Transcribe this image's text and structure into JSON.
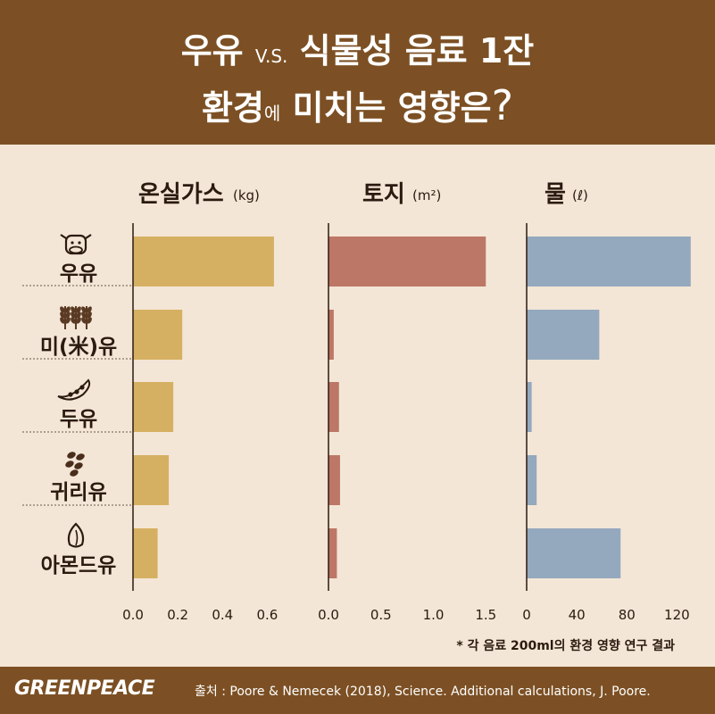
{
  "header": {
    "title_line1_a": "우유",
    "title_line1_vs": "V.S.",
    "title_line1_b": "식물성 음료 1잔",
    "title_line2_a": "환경",
    "title_line2_small": "에",
    "title_line2_b": "미치는 영향은",
    "title_line2_q": "?"
  },
  "footnote": "* 각 음료 200ml의 환경 영향 연구 결과",
  "footer": {
    "logo": "GREENPEACE",
    "source": "출처 : Poore & Nemecek (2018), Science. Additional calculations, J. Poore."
  },
  "colors": {
    "header_bg": "#7c5024",
    "background": "#f3e6d6",
    "ghg": "#d6b062",
    "land": "#bd7766",
    "water": "#94a8be"
  },
  "chart_data": {
    "type": "bar",
    "orientation": "horizontal",
    "categories": [
      "우유",
      "미(米)유",
      "두유",
      "귀리유",
      "아몬드유"
    ],
    "category_icons": [
      "cow-icon",
      "rice-icon",
      "soybean-icon",
      "oat-icon",
      "almond-icon"
    ],
    "panels": [
      {
        "title": "온실가스",
        "unit": "(kg)",
        "values": [
          0.63,
          0.22,
          0.18,
          0.16,
          0.11
        ],
        "xlim": [
          0,
          0.75
        ],
        "ticks": [
          "0.0",
          "0.2",
          "0.4",
          "0.6"
        ],
        "tick_values": [
          0,
          0.2,
          0.4,
          0.6
        ],
        "color": "#d6b062"
      },
      {
        "title": "토지",
        "unit": "(m²)",
        "values": [
          1.5,
          0.05,
          0.1,
          0.11,
          0.08
        ],
        "xlim": [
          0,
          1.6
        ],
        "ticks": [
          "0.0",
          "0.5",
          "1.0",
          "1.5"
        ],
        "tick_values": [
          0,
          0.5,
          1.0,
          1.5
        ],
        "color": "#bd7766"
      },
      {
        "title": "물",
        "unit": "(ℓ)",
        "values": [
          131,
          58,
          4,
          8,
          75
        ],
        "xlim": [
          0,
          134
        ],
        "ticks": [
          "0",
          "40",
          "80",
          "120"
        ],
        "tick_values": [
          0,
          40,
          80,
          120
        ],
        "color": "#94a8be"
      }
    ]
  }
}
